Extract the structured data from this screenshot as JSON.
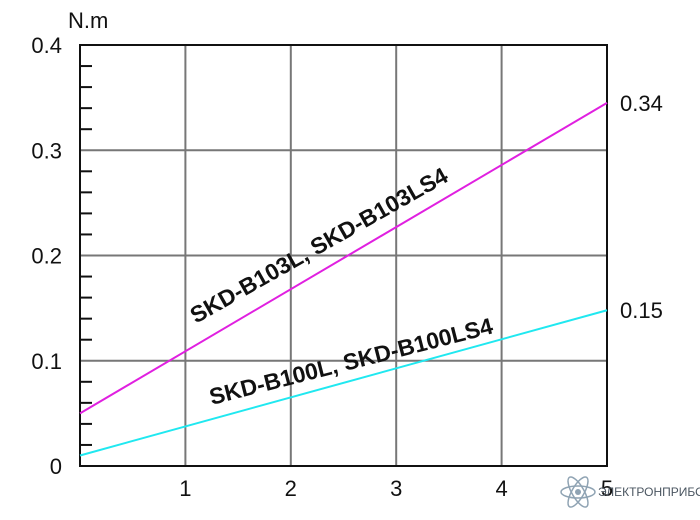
{
  "chart_data": {
    "type": "line",
    "ylabel": "N.m",
    "xlim": [
      0,
      5
    ],
    "ylim": [
      0,
      0.4
    ],
    "x_ticks": [
      "1",
      "2",
      "3",
      "4",
      "5"
    ],
    "y_ticks": [
      {
        "value": 0,
        "label": "0"
      },
      {
        "value": 0.1,
        "label": "0.1"
      },
      {
        "value": 0.2,
        "label": "0.2"
      },
      {
        "value": 0.3,
        "label": "0.3"
      },
      {
        "value": 0.4,
        "label": "0.4"
      }
    ],
    "grid": true,
    "series": [
      {
        "name": "SKD-B103L, SKD-B103LS4",
        "color": "#e020e0",
        "x": [
          0,
          5
        ],
        "y": [
          0.05,
          0.345
        ],
        "end_label": "0.34"
      },
      {
        "name": "SKD-B100L, SKD-B100LS4",
        "color": "#20e8f0",
        "x": [
          0,
          5
        ],
        "y": [
          0.01,
          0.148
        ],
        "end_label": "0.15"
      }
    ]
  },
  "watermark": {
    "text": "ЭЛЕКТРОНПРИБОР",
    "icon": "atom-icon"
  }
}
